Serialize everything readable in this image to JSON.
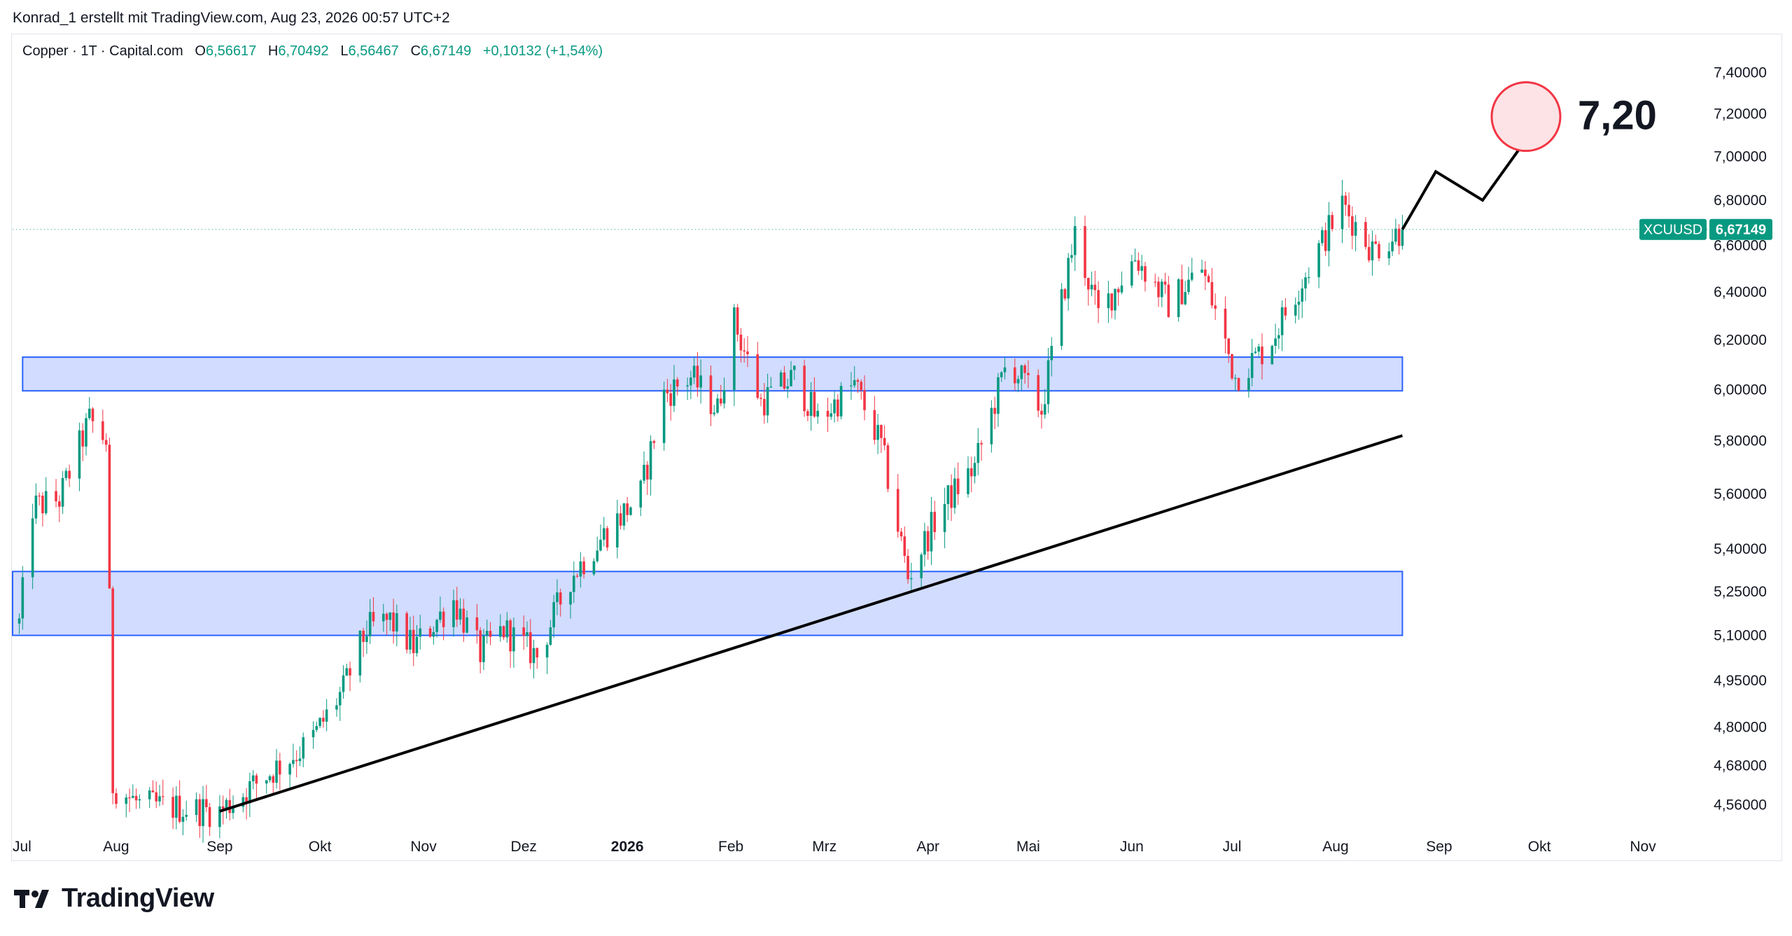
{
  "header": {
    "credit": "Konrad_1 erstellt mit TradingView.com, Aug 23, 2026 00:57 UTC+2"
  },
  "legend": {
    "symbol": "Copper · 1T · Capital.com",
    "open_key": "O",
    "open": "6,56617",
    "high_key": "H",
    "high": "6,70492",
    "low_key": "L",
    "low": "6,56467",
    "close_key": "C",
    "close": "6,67149",
    "change": "+0,10132 (+1,54%)"
  },
  "price_tag": {
    "ticker": "XCUUSD",
    "price": "6,67149"
  },
  "target_label": "7,20",
  "footer": {
    "brand": "TradingView"
  },
  "colors": {
    "up": "#089981",
    "down": "#f23645",
    "zone_fill": "#d1dcff",
    "zone_border": "#2962ff",
    "target_fill": "#fde3e5",
    "target_border": "#f23645",
    "tag_bg": "#089981"
  },
  "chart_data": {
    "type": "candlestick",
    "y_scale": "log",
    "ylim": [
      4.5,
      7.55
    ],
    "y_ticks": [
      "4,56000",
      "4,68000",
      "4,80000",
      "4,95000",
      "5,10000",
      "5,25000",
      "5,40000",
      "5,60000",
      "5,80000",
      "6,00000",
      "6,20000",
      "6,40000",
      "6,60000",
      "6,80000",
      "7,00000",
      "7,20000",
      "7,40000"
    ],
    "x_ticks": [
      "Jul",
      "Aug",
      "Sep",
      "Okt",
      "Nov",
      "Dez",
      "2026",
      "Feb",
      "Mrz",
      "Apr",
      "Mai",
      "Jun",
      "Jul",
      "Aug",
      "Sep",
      "Okt",
      "Nov"
    ],
    "anchors": [
      [
        "2025-07-03",
        5.14
      ],
      [
        "2025-07-07",
        5.55
      ],
      [
        "2025-07-15",
        5.58
      ],
      [
        "2025-07-24",
        5.88
      ],
      [
        "2025-07-29",
        5.8
      ],
      [
        "2025-07-31",
        4.62
      ],
      [
        "2025-08-08",
        4.56
      ],
      [
        "2025-08-20",
        4.55
      ],
      [
        "2025-09-01",
        4.54
      ],
      [
        "2025-09-15",
        4.65
      ],
      [
        "2025-09-28",
        4.75
      ],
      [
        "2025-10-08",
        4.92
      ],
      [
        "2025-10-15",
        5.12
      ],
      [
        "2025-10-22",
        5.15
      ],
      [
        "2025-10-29",
        5.06
      ],
      [
        "2025-11-10",
        5.22
      ],
      [
        "2025-11-18",
        5.04
      ],
      [
        "2025-11-25",
        5.12
      ],
      [
        "2025-12-05",
        5.03
      ],
      [
        "2025-12-15",
        5.3
      ],
      [
        "2025-12-25",
        5.45
      ],
      [
        "2026-01-05",
        5.6
      ],
      [
        "2026-01-12",
        5.98
      ],
      [
        "2026-01-20",
        6.05
      ],
      [
        "2026-01-28",
        5.92
      ],
      [
        "2026-02-02",
        6.28
      ],
      [
        "2026-02-10",
        5.95
      ],
      [
        "2026-02-20",
        6.05
      ],
      [
        "2026-02-27",
        5.88
      ],
      [
        "2026-03-10",
        6.02
      ],
      [
        "2026-03-18",
        5.78
      ],
      [
        "2026-03-26",
        5.3
      ],
      [
        "2026-04-05",
        5.55
      ],
      [
        "2026-04-15",
        5.7
      ],
      [
        "2026-04-25",
        6.12
      ],
      [
        "2026-05-05",
        5.92
      ],
      [
        "2026-05-15",
        6.65
      ],
      [
        "2026-05-22",
        6.3
      ],
      [
        "2026-06-02",
        6.55
      ],
      [
        "2026-06-12",
        6.35
      ],
      [
        "2026-06-22",
        6.5
      ],
      [
        "2026-07-02",
        6.05
      ],
      [
        "2026-07-12",
        6.18
      ],
      [
        "2026-07-22",
        6.45
      ],
      [
        "2026-08-03",
        6.78
      ],
      [
        "2026-08-12",
        6.58
      ],
      [
        "2026-08-21",
        6.67
      ]
    ],
    "zones": [
      {
        "from": "2025-07-01",
        "to": "2026-08-21",
        "low": 5.1,
        "high": 5.32
      },
      {
        "from": "2025-07-04",
        "to": "2026-08-21",
        "low": 5.995,
        "high": 6.13
      }
    ],
    "trendline": {
      "from": [
        "2025-09-01",
        4.54
      ],
      "to": [
        "2026-08-21",
        5.82
      ]
    },
    "projection": [
      [
        "2026-08-21",
        6.67
      ],
      [
        "2026-08-31",
        6.93
      ],
      [
        "2026-09-14",
        6.8
      ],
      [
        "2026-09-28",
        7.1
      ]
    ],
    "target": {
      "date": "2026-09-27",
      "value": 7.2
    },
    "last": {
      "date": "2026-08-21",
      "value": 6.67
    }
  }
}
